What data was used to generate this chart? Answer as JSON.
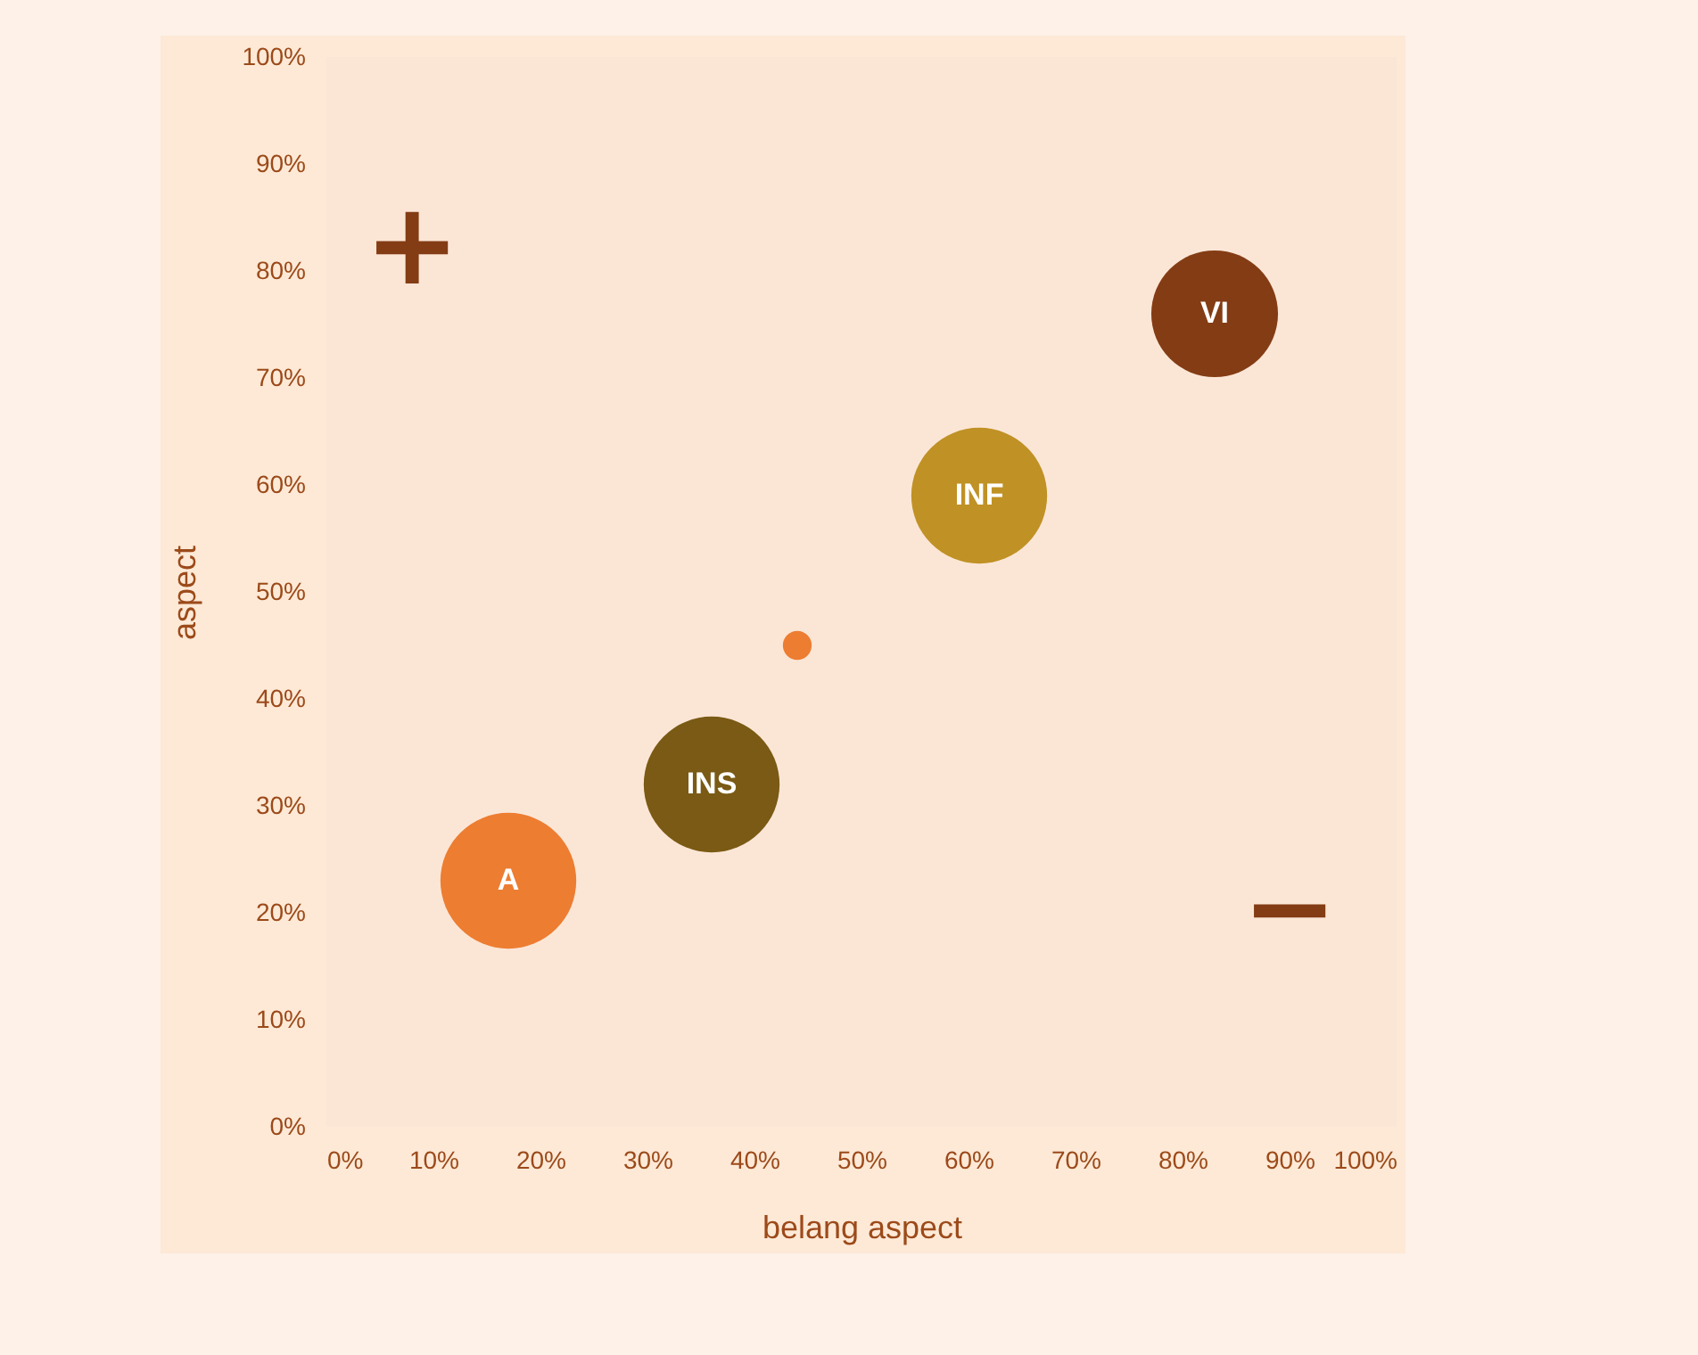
{
  "chart_data": {
    "type": "bubble",
    "xlabel": "belang aspect",
    "ylabel": "aspect",
    "xlim": [
      0,
      100
    ],
    "ylim": [
      0,
      100
    ],
    "xticks": [
      {
        "value": 0,
        "label": "0%"
      },
      {
        "value": 10,
        "label": "10%"
      },
      {
        "value": 20,
        "label": "20%"
      },
      {
        "value": 30,
        "label": "30%"
      },
      {
        "value": 40,
        "label": "40%"
      },
      {
        "value": 50,
        "label": "50%"
      },
      {
        "value": 60,
        "label": "60%"
      },
      {
        "value": 70,
        "label": "70%"
      },
      {
        "value": 80,
        "label": "80%"
      },
      {
        "value": 90,
        "label": "90%"
      },
      {
        "value": 100,
        "label": "100%"
      }
    ],
    "yticks": [
      {
        "value": 0,
        "label": "0%"
      },
      {
        "value": 10,
        "label": "10%"
      },
      {
        "value": 20,
        "label": "20%"
      },
      {
        "value": 30,
        "label": "30%"
      },
      {
        "value": 40,
        "label": "40%"
      },
      {
        "value": 50,
        "label": "50%"
      },
      {
        "value": 60,
        "label": "60%"
      },
      {
        "value": 70,
        "label": "70%"
      },
      {
        "value": 80,
        "label": "80%"
      },
      {
        "value": 90,
        "label": "90%"
      },
      {
        "value": 100,
        "label": "100%"
      }
    ],
    "series": [
      {
        "name": "A",
        "color": "#ed7d31",
        "x": [
          17
        ],
        "values": [
          23
        ],
        "sizes": [
          1
        ]
      },
      {
        "name": "INS",
        "color": "#7a5a14",
        "x": [
          36
        ],
        "values": [
          32
        ],
        "sizes": [
          1
        ]
      },
      {
        "color": "#ed7d31",
        "x": [
          44
        ],
        "values": [
          45
        ],
        "sizes": [
          0.045
        ]
      },
      {
        "name": "INF",
        "color": "#c09124",
        "x": [
          61
        ],
        "values": [
          59
        ],
        "sizes": [
          1
        ]
      },
      {
        "name": "VI",
        "color": "#843c14",
        "x": [
          83
        ],
        "values": [
          76
        ],
        "sizes": [
          0.87
        ]
      }
    ],
    "annotations": [
      "+",
      "−"
    ]
  }
}
